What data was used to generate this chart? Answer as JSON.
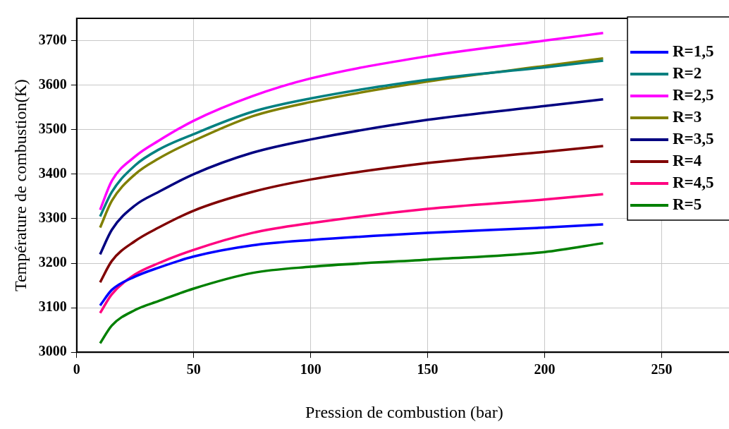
{
  "chart_data": {
    "type": "line",
    "xlabel": "Pression de combustion (bar)",
    "ylabel": "Température de combustion(K)",
    "x": [
      10,
      15,
      25,
      35,
      50,
      75,
      100,
      150,
      200,
      225
    ],
    "series": [
      {
        "name": "R=1,5",
        "color": "#0000ff",
        "values": [
          3105,
          3140,
          3170,
          3190,
          3215,
          3240,
          3252,
          3268,
          3280,
          3287
        ]
      },
      {
        "name": "R=2",
        "color": "#008080",
        "values": [
          3305,
          3360,
          3420,
          3455,
          3490,
          3540,
          3570,
          3612,
          3640,
          3655
        ]
      },
      {
        "name": "R=2,5",
        "color": "#ff00ff",
        "values": [
          3320,
          3385,
          3440,
          3475,
          3520,
          3575,
          3615,
          3665,
          3700,
          3717
        ]
      },
      {
        "name": "R=3",
        "color": "#808000",
        "values": [
          3280,
          3340,
          3400,
          3435,
          3475,
          3530,
          3562,
          3608,
          3643,
          3660
        ]
      },
      {
        "name": "R=3,5",
        "color": "#000080",
        "values": [
          3220,
          3275,
          3330,
          3360,
          3400,
          3448,
          3478,
          3522,
          3553,
          3568
        ]
      },
      {
        "name": "R=4",
        "color": "#800000",
        "values": [
          3157,
          3205,
          3250,
          3280,
          3318,
          3360,
          3388,
          3425,
          3450,
          3463
        ]
      },
      {
        "name": "R=4,5",
        "color": "#ff0080",
        "values": [
          3088,
          3130,
          3175,
          3200,
          3230,
          3268,
          3290,
          3322,
          3343,
          3355
        ]
      },
      {
        "name": "R=5",
        "color": "#008000",
        "values": [
          3020,
          3060,
          3095,
          3115,
          3143,
          3178,
          3192,
          3208,
          3225,
          3245
        ]
      }
    ],
    "xlim": [
      0,
      280
    ],
    "xticks": [
      0,
      50,
      100,
      150,
      200,
      250
    ],
    "ylim": [
      3000,
      3750
    ],
    "yticks": [
      3000,
      3100,
      3200,
      3300,
      3400,
      3500,
      3600,
      3700
    ],
    "grid": true,
    "legend": "top right",
    "marker": "none",
    "line_style": "solid"
  }
}
